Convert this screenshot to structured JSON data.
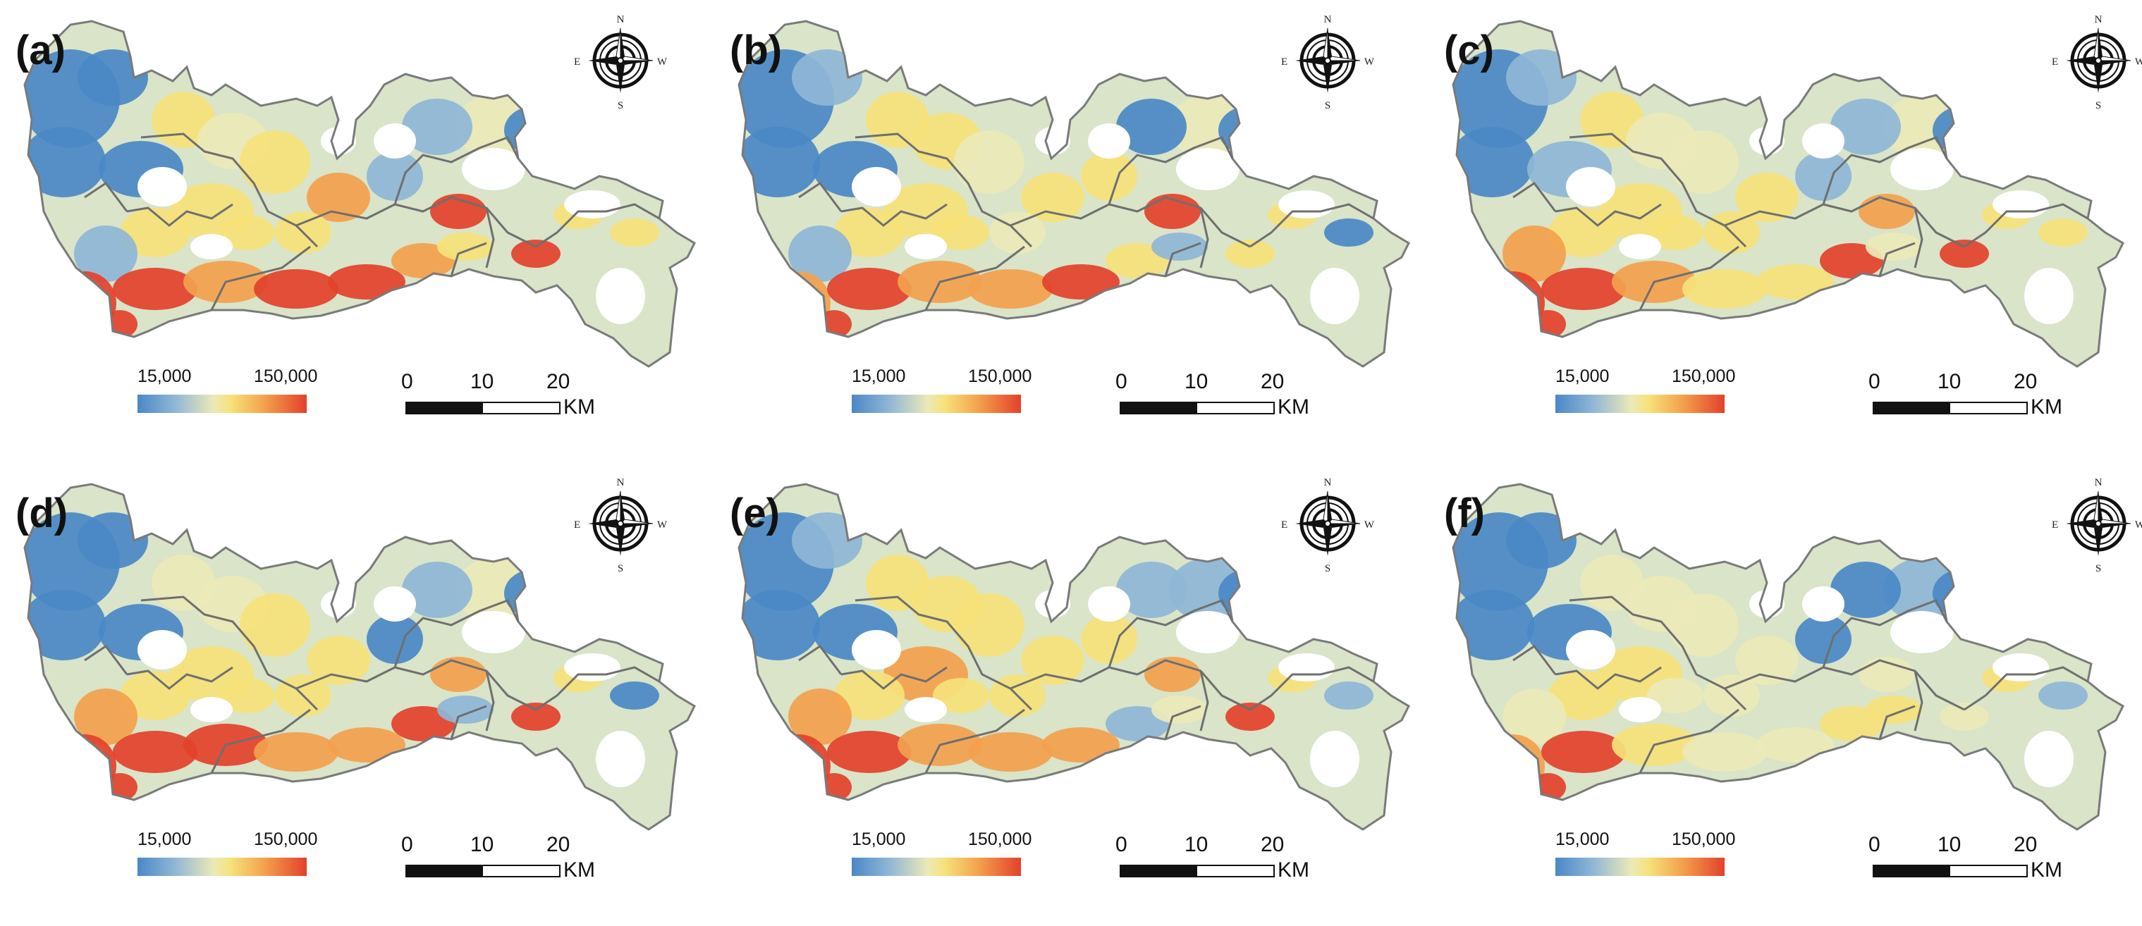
{
  "panels": [
    {
      "label": "(a)",
      "variant": 0
    },
    {
      "label": "(b)",
      "variant": 1
    },
    {
      "label": "(c)",
      "variant": 2
    },
    {
      "label": "(d)",
      "variant": 3
    },
    {
      "label": "(e)",
      "variant": 4
    },
    {
      "label": "(f)",
      "variant": 5
    }
  ],
  "compass": {
    "n": "N",
    "s": "S",
    "e": "E",
    "w": "W"
  },
  "legend": {
    "min_label": "15,000",
    "max_label": "150,000",
    "min_value": 15000,
    "max_value": 150000
  },
  "scale_bar": {
    "ticks": [
      "0",
      "10",
      "20"
    ],
    "unit": "KM"
  },
  "colors": {
    "low": "#4a88c6",
    "mid_low": "#8fb6d6",
    "mid": "#ece9b8",
    "yellow": "#f6e27a",
    "orange": "#f3a14d",
    "high": "#e3412b",
    "boundary": "#7a7a7a",
    "background": "#ffffff"
  }
}
